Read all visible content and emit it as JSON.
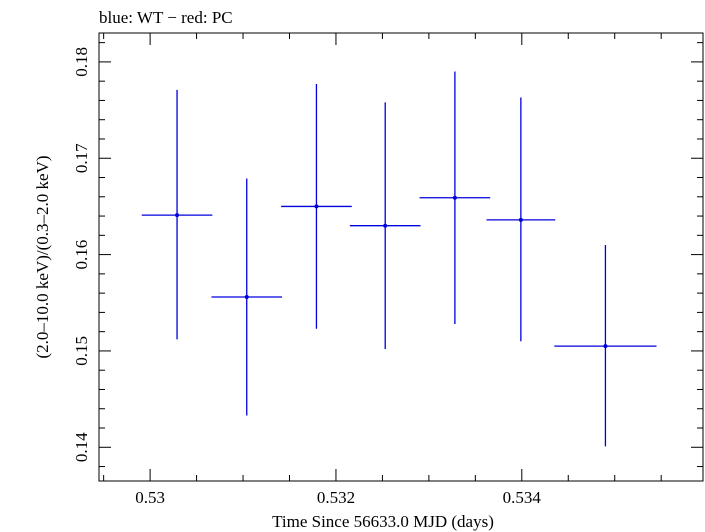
{
  "chart_data": {
    "type": "scatter",
    "title": "blue: WT − red: PC",
    "xlabel": "Time Since 56633.0 MJD (days)",
    "ylabel": "(2.0–10.0 keV)/(0.3–2.0 keV)",
    "xlim": [
      0.52945,
      0.53595
    ],
    "ylim": [
      0.1365,
      0.183
    ],
    "x_ticks": [
      {
        "value": 0.53,
        "label": "0.53"
      },
      {
        "value": 0.532,
        "label": "0.532"
      },
      {
        "value": 0.534,
        "label": "0.534"
      }
    ],
    "y_ticks": [
      {
        "value": 0.14,
        "label": "0.14"
      },
      {
        "value": 0.15,
        "label": "0.15"
      },
      {
        "value": 0.16,
        "label": "0.16"
      },
      {
        "value": 0.17,
        "label": "0.17"
      },
      {
        "value": 0.18,
        "label": "0.18"
      }
    ],
    "x_minor_step": 0.0005,
    "y_minor_step": 0.002,
    "grid": false,
    "series": [
      {
        "name": "WT",
        "color": "#0000dd",
        "points": [
          {
            "x": 0.53029,
            "xerr": 0.00038,
            "y": 0.1641,
            "yerr_low": 0.0129,
            "yerr_high": 0.013
          },
          {
            "x": 0.53104,
            "xerr": 0.00038,
            "y": 0.1556,
            "yerr_low": 0.0123,
            "yerr_high": 0.0123
          },
          {
            "x": 0.53179,
            "xerr": 0.00038,
            "y": 0.165,
            "yerr_low": 0.0127,
            "yerr_high": 0.0127
          },
          {
            "x": 0.53253,
            "xerr": 0.00038,
            "y": 0.163,
            "yerr_low": 0.0128,
            "yerr_high": 0.0128
          },
          {
            "x": 0.53328,
            "xerr": 0.00038,
            "y": 0.1659,
            "yerr_low": 0.0131,
            "yerr_high": 0.0131
          },
          {
            "x": 0.53399,
            "xerr": 0.00037,
            "y": 0.1636,
            "yerr_low": 0.0126,
            "yerr_high": 0.0127
          },
          {
            "x": 0.5349,
            "xerr": 0.00055,
            "y": 0.1505,
            "yerr_low": 0.0104,
            "yerr_high": 0.0105
          }
        ]
      },
      {
        "name": "PC",
        "color": "#dd0000",
        "points": []
      }
    ]
  }
}
